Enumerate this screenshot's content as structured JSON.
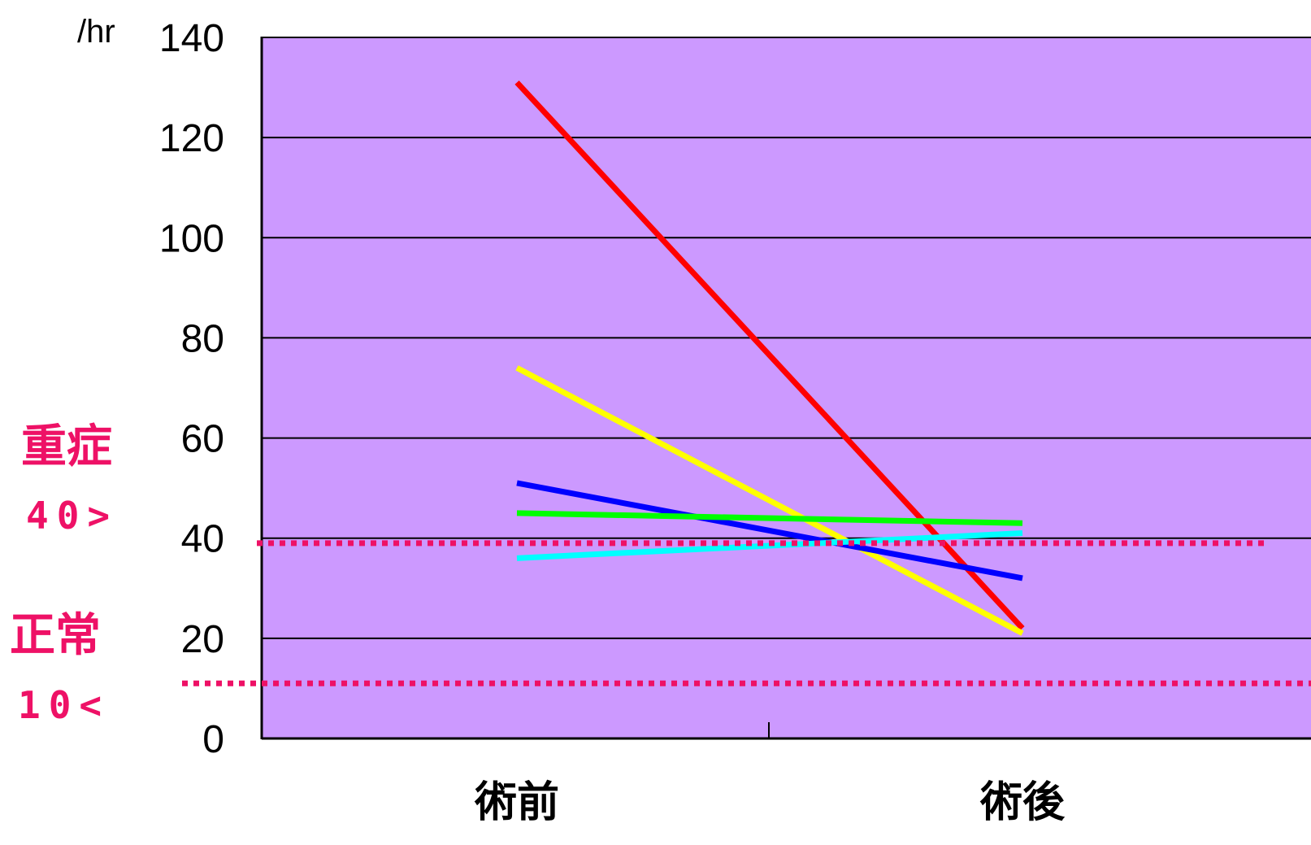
{
  "chart_data": {
    "type": "line",
    "ylabel": "/hr",
    "ylim": [
      0,
      140
    ],
    "yticks": [
      0,
      20,
      40,
      60,
      80,
      100,
      120,
      140
    ],
    "categories": [
      "術前",
      "術後"
    ],
    "grid": true,
    "background_color": "#cc99ff",
    "series": [
      {
        "color": "#ff0000",
        "values": [
          131,
          22
        ]
      },
      {
        "color": "#ffff00",
        "values": [
          74,
          21
        ]
      },
      {
        "color": "#0000ff",
        "values": [
          51,
          32
        ]
      },
      {
        "color": "#00ff00",
        "values": [
          45,
          43
        ]
      },
      {
        "color": "#00ffff",
        "values": [
          36,
          41
        ]
      }
    ],
    "annotations": [
      {
        "label": "重症",
        "value_text": "40>",
        "y": 39,
        "line_style": "dotted",
        "color": "#ee1166"
      },
      {
        "label": "正常",
        "value_text": "10<",
        "y": 11,
        "line_style": "dotted",
        "color": "#ee1166"
      }
    ]
  }
}
